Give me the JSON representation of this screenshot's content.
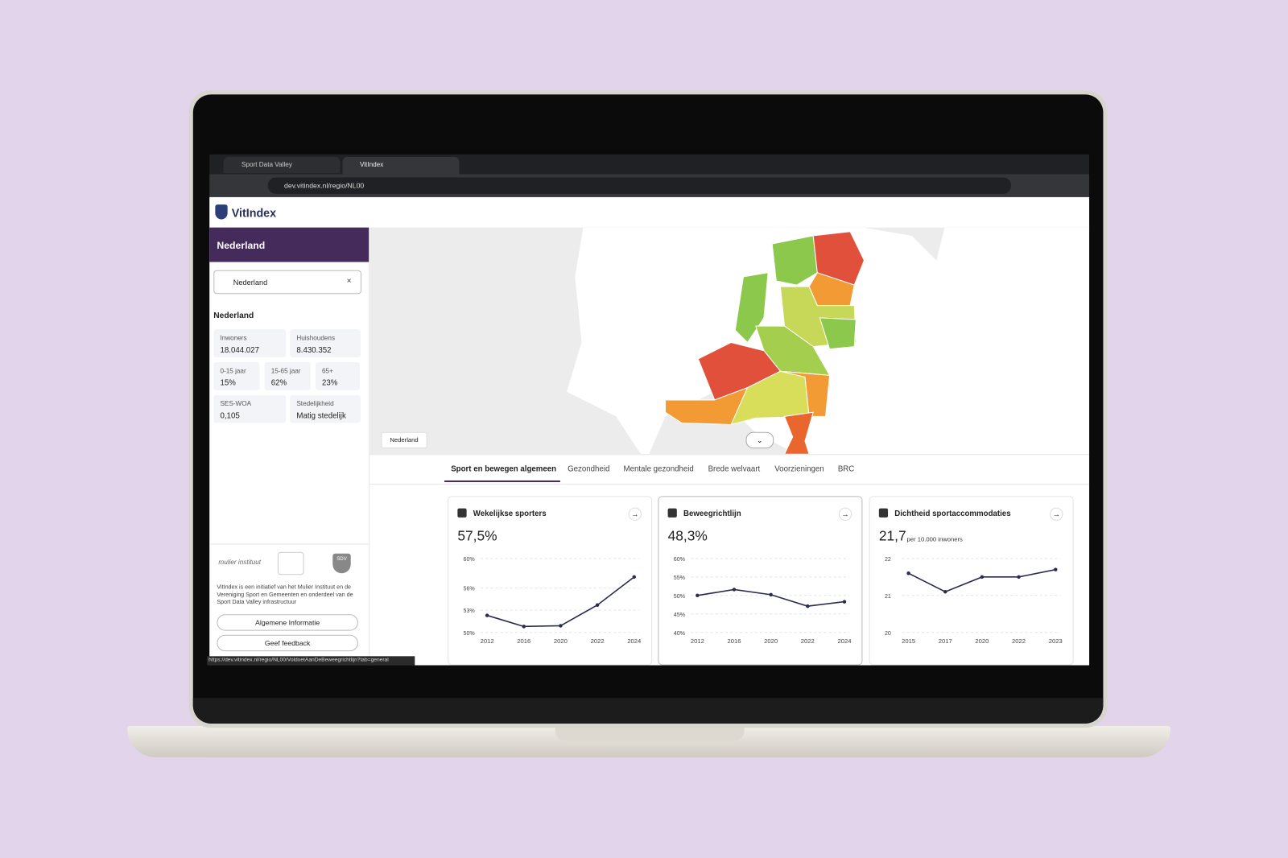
{
  "browser": {
    "tabs": [
      "Sport Data Valley",
      "VitIndex"
    ],
    "url": "dev.vitindex.nl/regio/NL00",
    "status_url": "https://dev.vitindex.nl/regio/NL00/VoldoetAanDeBeweegrichtlijn?tab=general"
  },
  "header": {
    "logo": "VitIndex"
  },
  "sidebar": {
    "title": "Nederland",
    "search": "Nederland",
    "region": "Nederland",
    "stats": [
      {
        "label": "Inwoners",
        "value": "18.044.027"
      },
      {
        "label": "Huishoudens",
        "value": "8.430.352"
      },
      {
        "label": "0-15 jaar",
        "value": "15%"
      },
      {
        "label": "15-65 jaar",
        "value": "62%"
      },
      {
        "label": "65+",
        "value": "23%"
      },
      {
        "label": "SES-WOA",
        "value": "0,105"
      },
      {
        "label": "Stedelijkheid",
        "value": "Matig stedelijk"
      }
    ],
    "logos": [
      "mulier instituut",
      "SDV"
    ],
    "about": "VitIndex is een initiatief van het Mulier Instituut en de Vereniging Sport en Gemeenten en onderdeel van de Sport Data Valley infrastructuur",
    "buttons": [
      "Algemene Informatie",
      "Geef feedback"
    ]
  },
  "map": {
    "label": "Nederland"
  },
  "tabs": [
    "Sport en bewegen algemeen",
    "Gezondheid",
    "Mentale gezondheid",
    "Brede welvaart",
    "Voorzieningen",
    "BRC"
  ],
  "cards": [
    {
      "title": "Wekelijkse sporters",
      "kpi": "57,5%"
    },
    {
      "title": "Beweegrichtlijn",
      "kpi": "48,3%"
    },
    {
      "title": "Dichtheid sportaccommodaties",
      "kpi": "21,7",
      "unit": "per 10.000 inwoners"
    }
  ],
  "chart_data": [
    {
      "type": "line",
      "categories": [
        "2012",
        "2016",
        "2020",
        "2022",
        "2024"
      ],
      "values": [
        52.3,
        50.8,
        50.9,
        53.7,
        57.5
      ],
      "color": "#2b2d4f",
      "ylim": [
        50,
        60
      ],
      "yticks": [
        {
          "value": 50,
          "label": "50%"
        },
        {
          "value": 53,
          "label": "53%"
        },
        {
          "value": 56,
          "label": "56%"
        },
        {
          "value": 60,
          "label": "60%"
        }
      ],
      "grid": true
    },
    {
      "type": "line",
      "categories": [
        "2012",
        "2016",
        "2020",
        "2022",
        "2024"
      ],
      "values": [
        50.0,
        51.6,
        50.2,
        47.1,
        48.3
      ],
      "color": "#2b2d4f",
      "ylim": [
        40,
        60
      ],
      "yticks": [
        {
          "value": 40,
          "label": "40%"
        },
        {
          "value": 45,
          "label": "45%"
        },
        {
          "value": 50,
          "label": "50%"
        },
        {
          "value": 55,
          "label": "55%"
        },
        {
          "value": 60,
          "label": "60%"
        }
      ],
      "grid": true
    },
    {
      "type": "line",
      "categories": [
        "2015",
        "2017",
        "2020",
        "2022",
        "2023"
      ],
      "values": [
        21.6,
        21.1,
        21.5,
        21.5,
        21.7
      ],
      "color": "#2b2d4f",
      "ylim": [
        20,
        22
      ],
      "yticks": [
        20,
        21,
        22
      ],
      "grid": true
    }
  ]
}
